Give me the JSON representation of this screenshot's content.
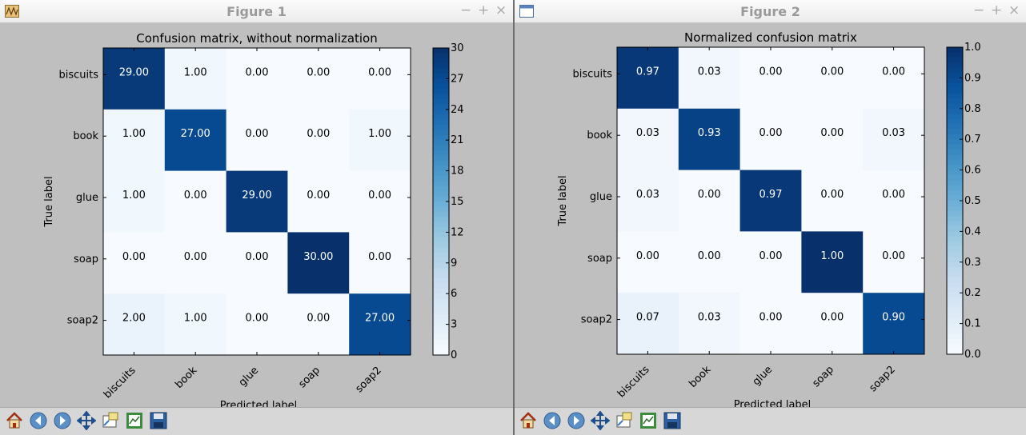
{
  "figures": [
    {
      "window_title": "Figure 1",
      "chart_data": {
        "type": "heatmap",
        "title": "Confusion matrix, without normalization",
        "xlabel": "Predicted label",
        "ylabel": "True label",
        "x_categories": [
          "biscuits",
          "book",
          "glue",
          "soap",
          "soap2"
        ],
        "y_categories": [
          "biscuits",
          "book",
          "glue",
          "soap",
          "soap2"
        ],
        "values": [
          [
            29,
            1,
            0,
            0,
            0
          ],
          [
            1,
            27,
            0,
            0,
            1
          ],
          [
            1,
            0,
            29,
            0,
            0
          ],
          [
            0,
            0,
            0,
            30,
            0
          ],
          [
            2,
            1,
            0,
            0,
            27
          ]
        ],
        "cell_labels": [
          [
            "29.00",
            "1.00",
            "0.00",
            "0.00",
            "0.00"
          ],
          [
            "1.00",
            "27.00",
            "0.00",
            "0.00",
            "1.00"
          ],
          [
            "1.00",
            "0.00",
            "29.00",
            "0.00",
            "0.00"
          ],
          [
            "0.00",
            "0.00",
            "0.00",
            "30.00",
            "0.00"
          ],
          [
            "2.00",
            "1.00",
            "0.00",
            "0.00",
            "27.00"
          ]
        ],
        "vmin": 0,
        "vmax": 30,
        "colorbar_ticks": [
          "0",
          "3",
          "6",
          "9",
          "12",
          "15",
          "18",
          "21",
          "24",
          "27",
          "30"
        ],
        "colormap": "Blues"
      }
    },
    {
      "window_title": "Figure 2",
      "chart_data": {
        "type": "heatmap",
        "title": "Normalized confusion matrix",
        "xlabel": "Predicted label",
        "ylabel": "True label",
        "x_categories": [
          "biscuits",
          "book",
          "glue",
          "soap",
          "soap2"
        ],
        "y_categories": [
          "biscuits",
          "book",
          "glue",
          "soap",
          "soap2"
        ],
        "values": [
          [
            0.97,
            0.03,
            0,
            0,
            0
          ],
          [
            0.03,
            0.93,
            0,
            0,
            0.03
          ],
          [
            0.03,
            0,
            0.97,
            0,
            0
          ],
          [
            0,
            0,
            0,
            1.0,
            0
          ],
          [
            0.07,
            0.03,
            0,
            0,
            0.9
          ]
        ],
        "cell_labels": [
          [
            "0.97",
            "0.03",
            "0.00",
            "0.00",
            "0.00"
          ],
          [
            "0.03",
            "0.93",
            "0.00",
            "0.00",
            "0.03"
          ],
          [
            "0.03",
            "0.00",
            "0.97",
            "0.00",
            "0.00"
          ],
          [
            "0.00",
            "0.00",
            "0.00",
            "1.00",
            "0.00"
          ],
          [
            "0.07",
            "0.03",
            "0.00",
            "0.00",
            "0.90"
          ]
        ],
        "vmin": 0,
        "vmax": 1.0,
        "colorbar_ticks": [
          "0.0",
          "0.1",
          "0.2",
          "0.3",
          "0.4",
          "0.5",
          "0.6",
          "0.7",
          "0.8",
          "0.9",
          "1.0"
        ],
        "colormap": "Blues"
      }
    }
  ],
  "toolbar_icons": [
    "home-icon",
    "back-arrow-icon",
    "forward-arrow-icon",
    "pan-icon",
    "zoom-icon",
    "configure-subplots-icon",
    "save-icon"
  ],
  "colors": {
    "window_bg": "#bfbfbf",
    "title_text": "#9a9a9a",
    "toolbar_bg": "#d7d7d7"
  }
}
